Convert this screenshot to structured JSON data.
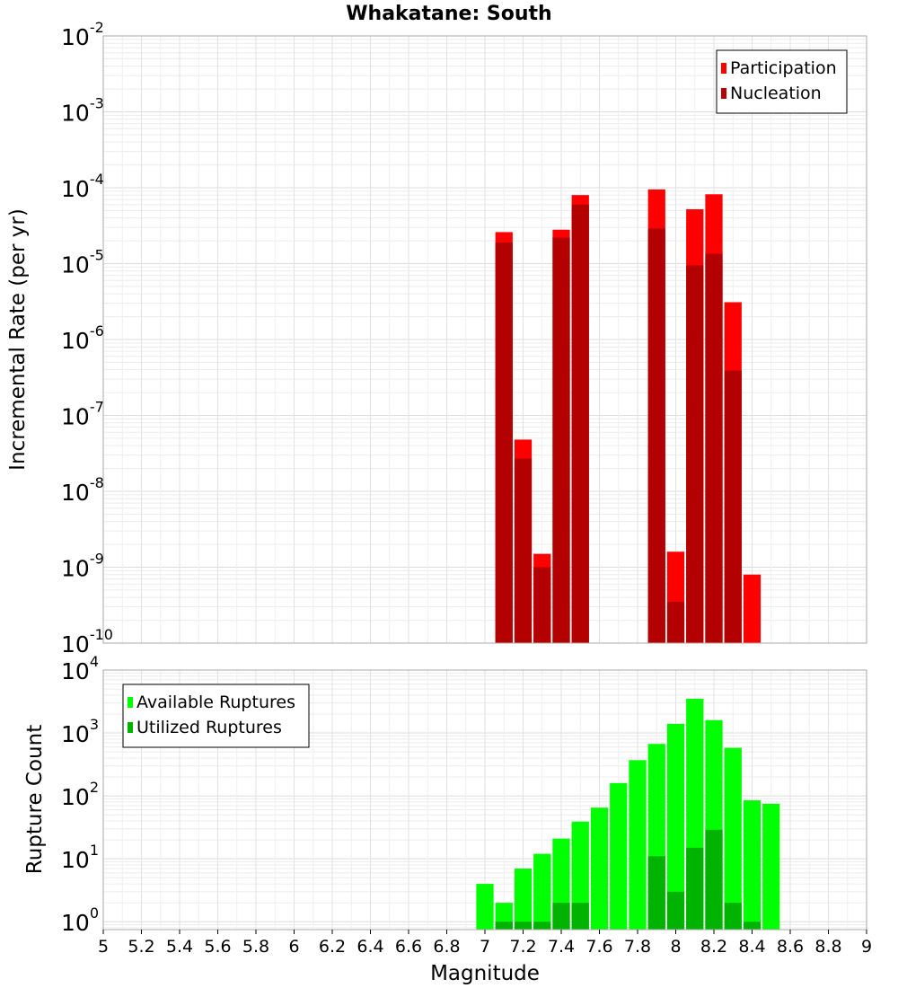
{
  "chart_data": [
    {
      "type": "bar",
      "title": "Whakatane: South",
      "xlabel": "",
      "ylabel": "Incremental Rate (per yr)",
      "yscale": "log",
      "ylim": [
        1e-10,
        0.01
      ],
      "xlim": [
        5,
        9
      ],
      "grid": true,
      "legend_position": "top-right",
      "x": [
        7.1,
        7.2,
        7.3,
        7.4,
        7.5,
        7.9,
        8.0,
        8.1,
        8.2,
        8.3,
        8.4
      ],
      "series": [
        {
          "name": "Participation",
          "color": "#ff0000",
          "values": [
            2.6e-05,
            4.8e-08,
            1.5e-09,
            2.8e-05,
            8e-05,
            9.5e-05,
            1.6e-09,
            5.2e-05,
            8.2e-05,
            3.1e-06,
            8e-10
          ]
        },
        {
          "name": "Nucleation",
          "color": "#b30000",
          "values": [
            1.9e-05,
            2.7e-08,
            1e-09,
            2.2e-05,
            6e-05,
            2.9e-05,
            3.5e-10,
            9.5e-06,
            1.35e-05,
            3.9e-07,
            null
          ]
        }
      ],
      "y_ticks": [
        {
          "base": "10",
          "exp": "-10"
        },
        {
          "base": "10",
          "exp": "-9"
        },
        {
          "base": "10",
          "exp": "-8"
        },
        {
          "base": "10",
          "exp": "-7"
        },
        {
          "base": "10",
          "exp": "-6"
        },
        {
          "base": "10",
          "exp": "-5"
        },
        {
          "base": "10",
          "exp": "-4"
        },
        {
          "base": "10",
          "exp": "-3"
        },
        {
          "base": "10",
          "exp": "-2"
        }
      ]
    },
    {
      "type": "bar",
      "title": "",
      "xlabel": "Magnitude",
      "ylabel": "Rupture Count",
      "yscale": "log",
      "ylim": [
        0.75,
        10000
      ],
      "xlim": [
        5,
        9
      ],
      "grid": true,
      "legend_position": "top-left",
      "x": [
        7.0,
        7.1,
        7.2,
        7.3,
        7.4,
        7.5,
        7.6,
        7.7,
        7.8,
        7.9,
        8.0,
        8.1,
        8.2,
        8.3,
        8.4,
        8.5
      ],
      "series": [
        {
          "name": "Available Ruptures",
          "color": "#00ff00",
          "values": [
            4,
            2,
            7,
            12,
            21,
            39,
            65,
            160,
            370,
            670,
            1400,
            3500,
            1600,
            580,
            85,
            75
          ]
        },
        {
          "name": "Utilized Ruptures",
          "color": "#00b300",
          "values": [
            null,
            1,
            1,
            1,
            2,
            2,
            null,
            null,
            null,
            11,
            3,
            15,
            29,
            2,
            1,
            null
          ]
        }
      ],
      "y_ticks": [
        {
          "base": "10",
          "exp": "0"
        },
        {
          "base": "10",
          "exp": "1"
        },
        {
          "base": "10",
          "exp": "2"
        },
        {
          "base": "10",
          "exp": "3"
        },
        {
          "base": "10",
          "exp": "4"
        }
      ],
      "x_ticks": [
        "5",
        "5.2",
        "5.4",
        "5.6",
        "5.8",
        "6",
        "6.2",
        "6.4",
        "6.6",
        "6.8",
        "7",
        "7.2",
        "7.4",
        "7.6",
        "7.8",
        "8",
        "8.2",
        "8.4",
        "8.6",
        "8.8",
        "9"
      ]
    }
  ]
}
